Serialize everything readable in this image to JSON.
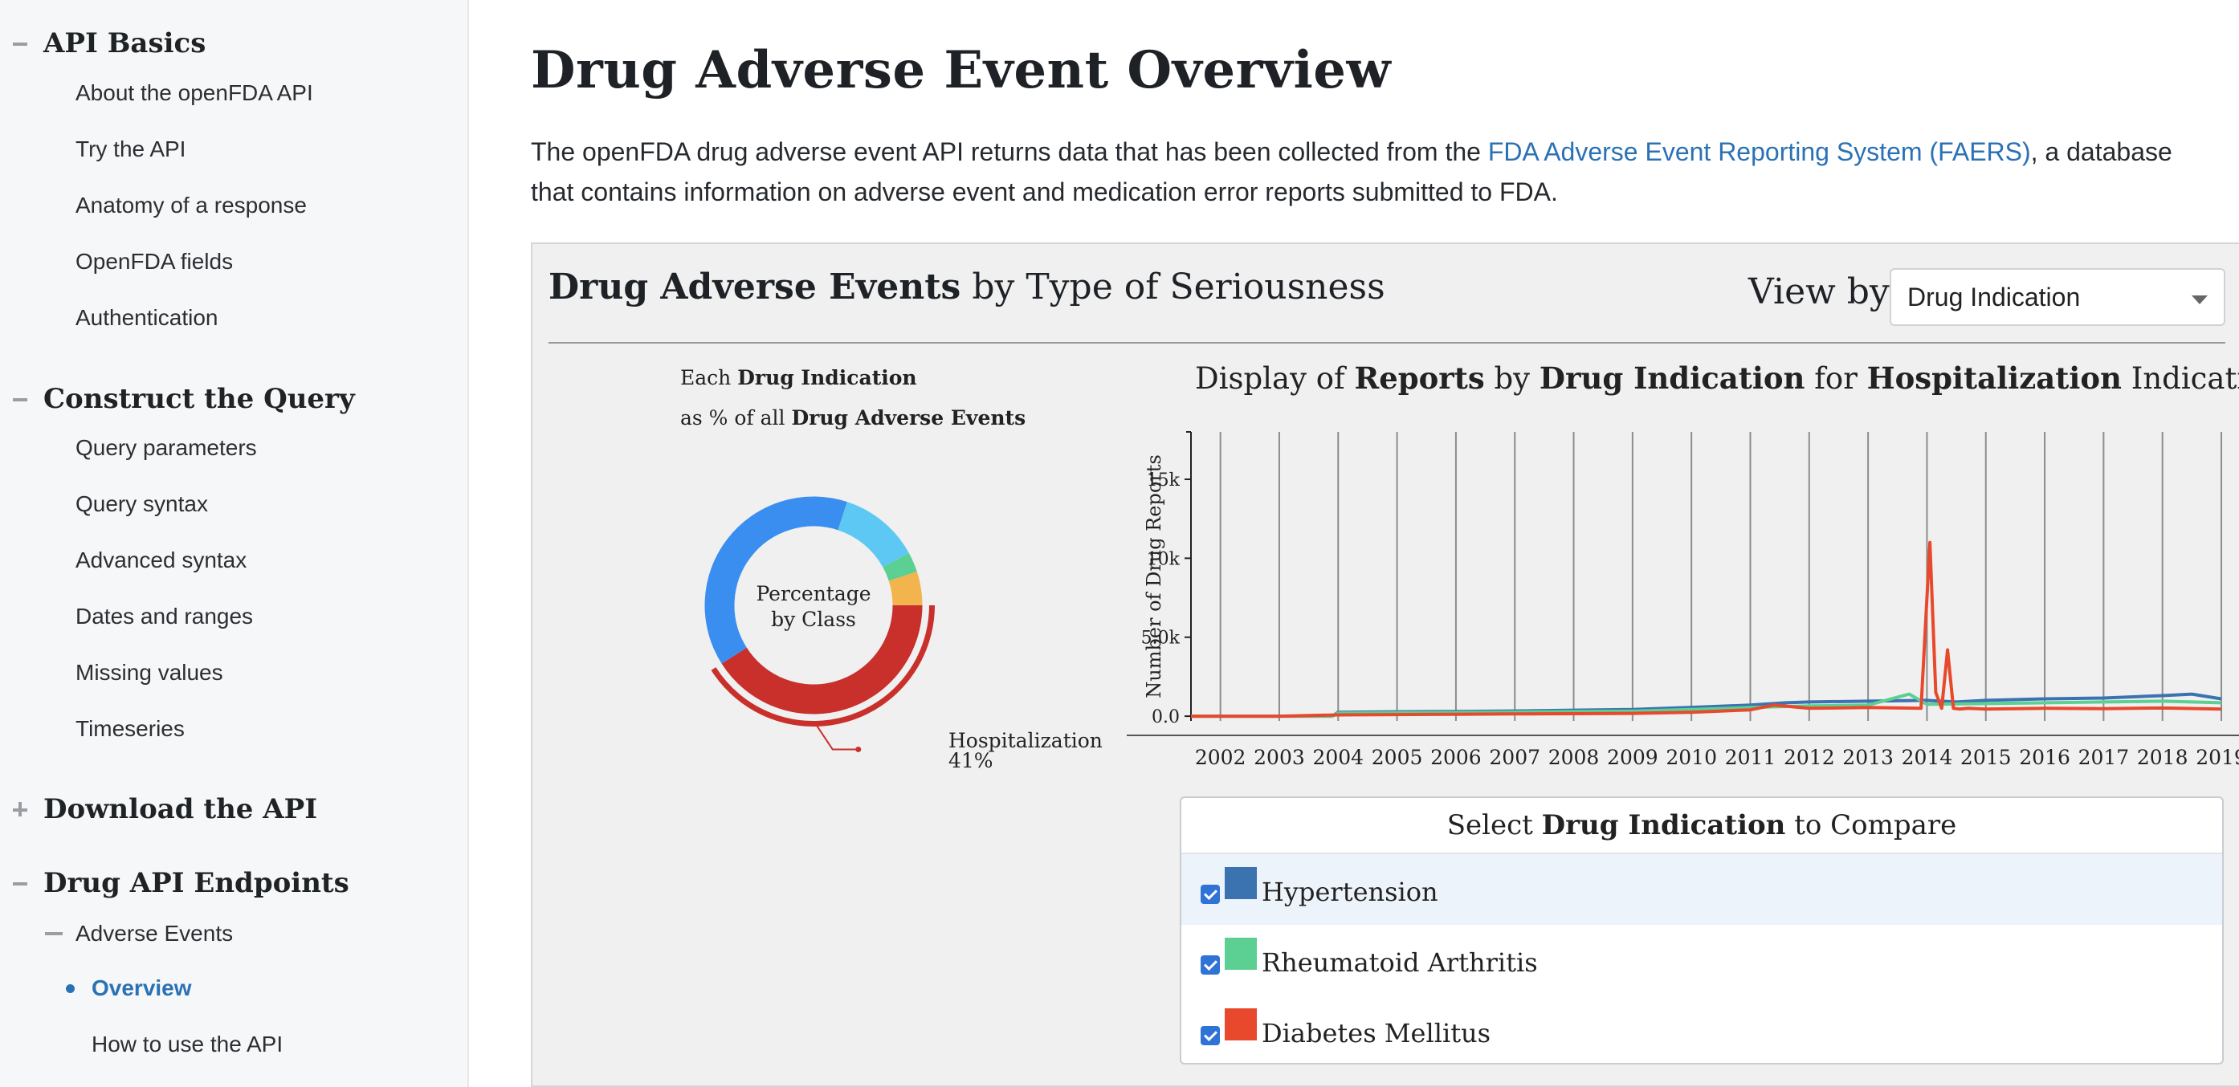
{
  "sidebar": {
    "sections": [
      {
        "title": "API Basics",
        "toggle": "minus",
        "items": [
          "About the openFDA API",
          "Try the API",
          "Anatomy of a response",
          "OpenFDA fields",
          "Authentication"
        ]
      },
      {
        "title": "Construct the Query",
        "toggle": "minus",
        "items": [
          "Query parameters",
          "Query syntax",
          "Advanced syntax",
          "Dates and ranges",
          "Missing values",
          "Timeseries"
        ]
      },
      {
        "title": "Download the API",
        "toggle": "plus",
        "items": []
      },
      {
        "title": "Drug API Endpoints",
        "toggle": "minus",
        "subsection": "Adverse Events",
        "active_item": "Overview",
        "items_after": [
          "How to use the API"
        ]
      }
    ]
  },
  "main": {
    "title": "Drug Adverse Event Overview",
    "intro_before_link": "The openFDA drug adverse event API returns data that has been collected from the ",
    "intro_link": "FDA Adverse Event Reporting System (FAERS)",
    "intro_after_link": ", a database that contains information on adverse event and medication error reports submitted to FDA."
  },
  "panel": {
    "title_bold": "Drug Adverse Events",
    "title_rest": " by Type of Seriousness",
    "view_by_label": "View by:",
    "view_by_value": "Drug Indication",
    "donut": {
      "caption_line1_prefix": "Each ",
      "caption_line1_bold": "Drug Indication",
      "caption_line2_prefix": "as % of all ",
      "caption_line2_bold": "Drug Adverse Events",
      "center_line1": "Percentage",
      "center_line2": "by Class",
      "callout_label": "Hospitalization",
      "callout_value": "41%"
    },
    "line_chart_title": {
      "p1": "Display of ",
      "b1": "Reports",
      "p2": " by ",
      "b2": "Drug Indication",
      "p3": " for ",
      "b3": "Hospitalization",
      "p4": " Indication"
    },
    "compare": {
      "title_prefix": "Select ",
      "title_bold": "Drug Indication",
      "title_suffix": " to Compare",
      "items": [
        {
          "label": "Hypertension",
          "color": "#3b72b0",
          "checked": true
        },
        {
          "label": "Rheumatoid Arthritis",
          "color": "#5ccf92",
          "checked": true
        },
        {
          "label": "Diabetes Mellitus",
          "color": "#e8482c",
          "checked": true
        }
      ]
    }
  },
  "chart_data": [
    {
      "type": "pie",
      "title": "Percentage by Class",
      "slices": [
        {
          "label": "Hospitalization",
          "value": 41,
          "color": "#c9302c"
        },
        {
          "label": "",
          "value": 39,
          "color": "#3a8ef0"
        },
        {
          "label": "",
          "value": 12,
          "color": "#5ec8f5"
        },
        {
          "label": "",
          "value": 3,
          "color": "#5ccf92"
        },
        {
          "label": "",
          "value": 5,
          "color": "#f2b44c"
        }
      ]
    },
    {
      "type": "line",
      "title": "Display of Reports by Drug Indication for Hospitalization Indication",
      "ylabel": "Number of Drug Reports",
      "xlabel": "",
      "xlim": [
        2001.5,
        2019.3
      ],
      "ylim": [
        -300,
        18000
      ],
      "yticks": [
        0,
        5000,
        10000,
        15000
      ],
      "ytick_labels": [
        "0.0",
        "5.0k",
        "10k",
        "15k"
      ],
      "xticks": [
        2002,
        2003,
        2004,
        2005,
        2006,
        2007,
        2008,
        2009,
        2010,
        2011,
        2012,
        2013,
        2014,
        2015,
        2016,
        2017,
        2018,
        2019
      ],
      "xtick_labels": [
        "2002",
        "2003",
        "2004",
        "2005",
        "2006",
        "2007",
        "2008",
        "2009",
        "2010",
        "2011",
        "2012",
        "2013",
        "2014",
        "2015",
        "2016",
        "2017",
        "2018",
        "2019"
      ],
      "grid": "vertical",
      "series": [
        {
          "name": "Hypertension",
          "color": "#3b72b0",
          "x": [
            2001.5,
            2002,
            2003,
            2003.9,
            2004,
            2005,
            2006,
            2007,
            2008,
            2009,
            2010,
            2011,
            2011.6,
            2012,
            2013,
            2014,
            2014.5,
            2015,
            2016,
            2017,
            2018,
            2018.5,
            2019
          ],
          "y": [
            0,
            0,
            0,
            0,
            250,
            280,
            300,
            330,
            380,
            420,
            560,
            700,
            850,
            900,
            950,
            1000,
            900,
            1000,
            1100,
            1150,
            1300,
            1400,
            1100
          ]
        },
        {
          "name": "Rheumatoid Arthritis",
          "color": "#5ccf92",
          "x": [
            2001.5,
            2002,
            2003,
            2003.9,
            2004,
            2005,
            2006,
            2007,
            2008,
            2009,
            2010,
            2011,
            2012,
            2013,
            2013.7,
            2014,
            2015,
            2016,
            2017,
            2018,
            2019
          ],
          "y": [
            0,
            0,
            0,
            0,
            200,
            220,
            240,
            260,
            300,
            320,
            420,
            550,
            650,
            700,
            1400,
            750,
            800,
            850,
            900,
            950,
            850
          ]
        },
        {
          "name": "Diabetes Mellitus",
          "color": "#e8482c",
          "x": [
            2001.5,
            2002,
            2003,
            2004,
            2005,
            2006,
            2007,
            2008,
            2009,
            2010,
            2011,
            2011.4,
            2012,
            2013,
            2013.9,
            2014.05,
            2014.15,
            2014.25,
            2014.35,
            2014.45,
            2014.55,
            2014.7,
            2015,
            2016,
            2017,
            2018,
            2019
          ],
          "y": [
            0,
            0,
            0,
            80,
            100,
            120,
            140,
            160,
            180,
            250,
            400,
            700,
            500,
            550,
            500,
            11000,
            1500,
            500,
            4200,
            500,
            450,
            500,
            450,
            500,
            480,
            520,
            450
          ]
        }
      ]
    }
  ]
}
